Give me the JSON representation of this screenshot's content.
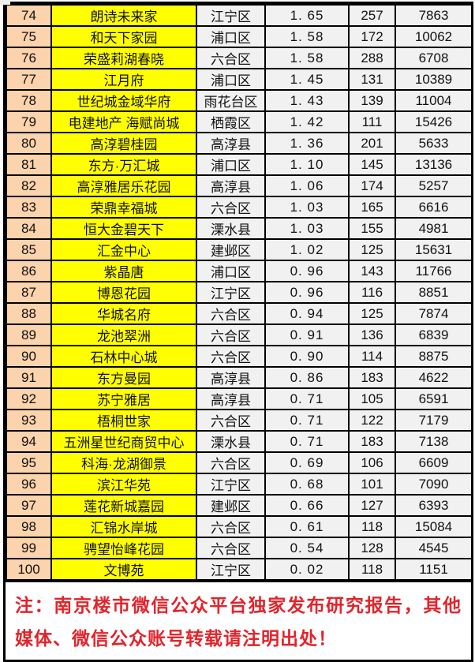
{
  "colors": {
    "border": "#000000",
    "rank_bg": "#fbd3ac",
    "name_bg": "#ffff00",
    "cell_bg": "#f1f1f1",
    "note_red": "#e2242b"
  },
  "table": {
    "rows": [
      [
        "74",
        "朗诗未来家",
        "江宁区",
        "1. 65",
        "257",
        "7863"
      ],
      [
        "75",
        "和天下家园",
        "浦口区",
        "1. 58",
        "172",
        "10062"
      ],
      [
        "76",
        "荣盛莉湖春晓",
        "六合区",
        "1. 58",
        "288",
        "6708"
      ],
      [
        "77",
        "江月府",
        "浦口区",
        "1. 45",
        "131",
        "10389"
      ],
      [
        "78",
        "世纪城金域华府",
        "雨花台区",
        "1. 43",
        "139",
        "11004"
      ],
      [
        "79",
        "电建地产 海赋尚城",
        "栖霞区",
        "1. 42",
        "111",
        "15426"
      ],
      [
        "80",
        "高淳碧桂园",
        "高淳县",
        "1. 36",
        "201",
        "5633"
      ],
      [
        "81",
        "东方·万汇城",
        "浦口区",
        "1. 10",
        "145",
        "13136"
      ],
      [
        "82",
        "高淳雅居乐花园",
        "高淳县",
        "1. 06",
        "174",
        "5257"
      ],
      [
        "83",
        "荣鼎幸福城",
        "六合区",
        "1. 03",
        "165",
        "6616"
      ],
      [
        "84",
        "恒大金碧天下",
        "溧水县",
        "1. 03",
        "155",
        "4981"
      ],
      [
        "85",
        "汇金中心",
        "建邺区",
        "1. 02",
        "125",
        "15631"
      ],
      [
        "86",
        "紫晶唐",
        "浦口区",
        "0. 96",
        "143",
        "11766"
      ],
      [
        "87",
        "博恩花园",
        "江宁区",
        "0. 96",
        "116",
        "8851"
      ],
      [
        "88",
        "华城名府",
        "六合区",
        "0. 94",
        "125",
        "7874"
      ],
      [
        "89",
        "龙池翠洲",
        "六合区",
        "0. 91",
        "136",
        "6839"
      ],
      [
        "90",
        "石林中心城",
        "六合区",
        "0. 90",
        "114",
        "8875"
      ],
      [
        "91",
        "东方曼园",
        "高淳县",
        "0. 86",
        "183",
        "4622"
      ],
      [
        "92",
        "苏宁雅居",
        "高淳县",
        "0. 71",
        "105",
        "6591"
      ],
      [
        "93",
        "梧桐世家",
        "六合区",
        "0. 71",
        "122",
        "7179"
      ],
      [
        "94",
        "五洲星世纪商贸中心",
        "溧水县",
        "0. 71",
        "183",
        "7138"
      ],
      [
        "95",
        "科海·龙湖御景",
        "六合区",
        "0. 69",
        "106",
        "6609"
      ],
      [
        "96",
        "滨江华苑",
        "江宁区",
        "0. 68",
        "101",
        "7090"
      ],
      [
        "97",
        "莲花新城嘉园",
        "建邺区",
        "0. 66",
        "127",
        "6393"
      ],
      [
        "98",
        "汇锦水岸城",
        "六合区",
        "0. 61",
        "118",
        "15084"
      ],
      [
        "99",
        "骋望怡峰花园",
        "六合区",
        "0. 54",
        "128",
        "4545"
      ],
      [
        "100",
        "文博苑",
        "江宁区",
        "0. 02",
        "118",
        "1151"
      ]
    ]
  },
  "note": {
    "text": "注：南京楼市微信公众平台独家发布研究报告，其他媒体、微信公众账号转载请注明出处！"
  }
}
